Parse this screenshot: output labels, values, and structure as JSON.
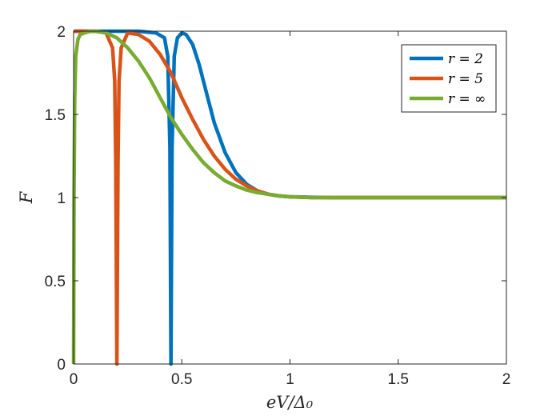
{
  "chart_data": {
    "type": "line",
    "title": "",
    "xlabel": "eV/Δ₀",
    "ylabel": "F",
    "xlim": [
      0,
      2
    ],
    "ylim": [
      0,
      2
    ],
    "xticks": [
      0,
      0.5,
      1,
      1.5,
      2
    ],
    "yticks": [
      0,
      0.5,
      1,
      1.5,
      2
    ],
    "xtick_labels": [
      "0",
      "0.5",
      "1",
      "1.5",
      "2"
    ],
    "ytick_labels": [
      "0",
      "0.5",
      "1",
      "1.5",
      "2"
    ],
    "grid": false,
    "legend_position": "top-right",
    "series": [
      {
        "name": "r = 2",
        "color": "#0072BD",
        "x": [
          0,
          0.05,
          0.1,
          0.2,
          0.3,
          0.38,
          0.42,
          0.435,
          0.445,
          0.45,
          0.455,
          0.465,
          0.48,
          0.5,
          0.52,
          0.55,
          0.58,
          0.6,
          0.63,
          0.65,
          0.7,
          0.75,
          0.8,
          0.85,
          0.9,
          0.95,
          1.0,
          1.1,
          1.2,
          1.4,
          1.6,
          1.8,
          2.0
        ],
        "y": [
          2.0,
          2.0,
          2.0,
          2.0,
          2.0,
          1.99,
          1.96,
          1.85,
          1.3,
          0.0,
          1.3,
          1.85,
          1.96,
          1.99,
          1.98,
          1.92,
          1.8,
          1.7,
          1.55,
          1.45,
          1.27,
          1.15,
          1.08,
          1.04,
          1.02,
          1.01,
          1.005,
          1.002,
          1.0,
          1.0,
          1.0,
          1.0,
          1.0
        ]
      },
      {
        "name": "r = 5",
        "color": "#D95319",
        "x": [
          0,
          0.05,
          0.1,
          0.15,
          0.18,
          0.19,
          0.195,
          0.2,
          0.205,
          0.21,
          0.22,
          0.25,
          0.3,
          0.35,
          0.4,
          0.45,
          0.5,
          0.55,
          0.6,
          0.65,
          0.7,
          0.75,
          0.8,
          0.85,
          0.9,
          0.95,
          1.0,
          1.1,
          1.2,
          1.4,
          1.6,
          1.8,
          2.0
        ],
        "y": [
          2.0,
          2.0,
          2.0,
          1.99,
          1.9,
          1.7,
          1.2,
          0.0,
          1.2,
          1.7,
          1.9,
          1.99,
          1.98,
          1.94,
          1.86,
          1.75,
          1.6,
          1.47,
          1.35,
          1.25,
          1.17,
          1.11,
          1.07,
          1.04,
          1.02,
          1.01,
          1.005,
          1.0,
          1.0,
          1.0,
          1.0,
          1.0,
          1.0
        ]
      },
      {
        "name": "r = ∞",
        "color": "#77AC30",
        "x": [
          0,
          0.002,
          0.005,
          0.01,
          0.02,
          0.03,
          0.05,
          0.08,
          0.1,
          0.15,
          0.2,
          0.25,
          0.3,
          0.35,
          0.4,
          0.45,
          0.5,
          0.55,
          0.6,
          0.65,
          0.7,
          0.75,
          0.8,
          0.85,
          0.9,
          0.95,
          1.0,
          1.1,
          1.2,
          1.4,
          1.6,
          1.8,
          2.0
        ],
        "y": [
          0.0,
          1.0,
          1.6,
          1.85,
          1.95,
          1.98,
          1.99,
          2.0,
          2.0,
          1.99,
          1.96,
          1.9,
          1.82,
          1.72,
          1.6,
          1.48,
          1.38,
          1.29,
          1.21,
          1.15,
          1.1,
          1.07,
          1.045,
          1.03,
          1.02,
          1.01,
          1.005,
          1.0,
          1.0,
          1.0,
          1.0,
          1.0,
          1.0
        ]
      }
    ]
  }
}
